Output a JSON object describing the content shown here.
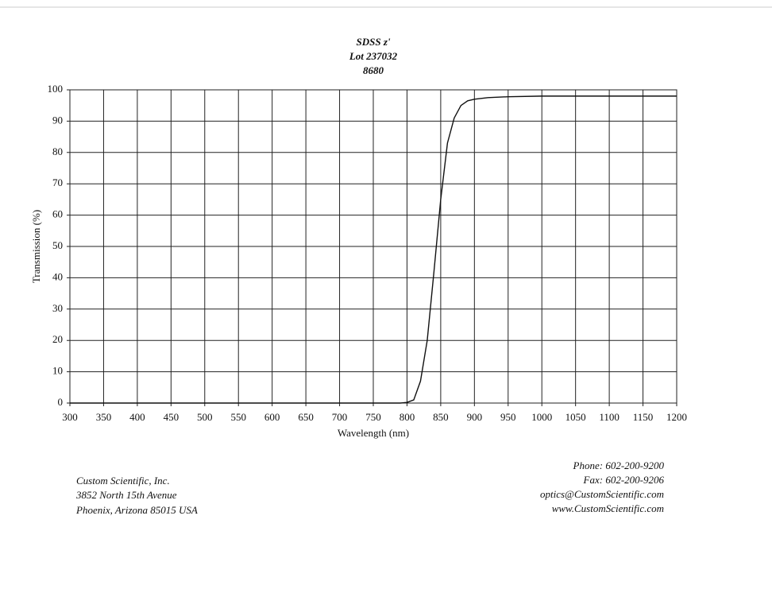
{
  "chart_data": {
    "type": "line",
    "title": "SDSS z'",
    "subtitle": "Lot 237032",
    "annotation": "8680",
    "x_label": "Wavelength (nm)",
    "y_label": "Transmission (%)",
    "x": [
      300,
      400,
      500,
      600,
      700,
      780,
      790,
      800,
      810,
      820,
      830,
      840,
      850,
      860,
      870,
      880,
      890,
      900,
      920,
      950,
      1000,
      1050,
      1100,
      1150,
      1200
    ],
    "series": [
      {
        "color": "#111111",
        "values": [
          0,
          0,
          0,
          0,
          0,
          0,
          0,
          0.2,
          1,
          7,
          20,
          42,
          65,
          83,
          91,
          95,
          96.5,
          97,
          97.5,
          97.8,
          98,
          98,
          98,
          98,
          98
        ]
      }
    ],
    "xlim": [
      300,
      1200
    ],
    "xticks": [
      300,
      350,
      400,
      450,
      500,
      550,
      600,
      650,
      700,
      750,
      800,
      850,
      900,
      950,
      1000,
      1050,
      1100,
      1150,
      1200
    ],
    "ylim": [
      0,
      100
    ],
    "yticks": [
      0,
      10,
      20,
      30,
      40,
      50,
      60,
      70,
      80,
      90,
      100
    ],
    "grid": true
  },
  "footer": {
    "company": [
      "Custom Scientific, Inc.",
      "3852 North 15th Avenue",
      "Phoenix, Arizona 85015 USA"
    ],
    "contact": [
      "Phone:  602-200-9200",
      "Fax:  602-200-9206",
      "optics@CustomScientific.com",
      "www.CustomScientific.com"
    ]
  }
}
